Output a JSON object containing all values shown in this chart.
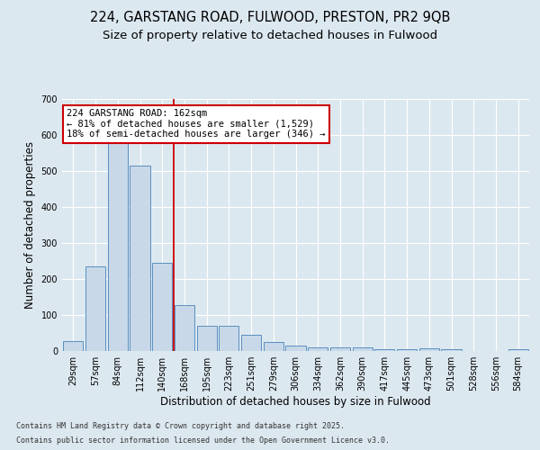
{
  "title_line1": "224, GARSTANG ROAD, FULWOOD, PRESTON, PR2 9QB",
  "title_line2": "Size of property relative to detached houses in Fulwood",
  "xlabel": "Distribution of detached houses by size in Fulwood",
  "ylabel": "Number of detached properties",
  "categories": [
    "29sqm",
    "57sqm",
    "84sqm",
    "112sqm",
    "140sqm",
    "168sqm",
    "195sqm",
    "223sqm",
    "251sqm",
    "279sqm",
    "306sqm",
    "334sqm",
    "362sqm",
    "390sqm",
    "417sqm",
    "445sqm",
    "473sqm",
    "501sqm",
    "528sqm",
    "556sqm",
    "584sqm"
  ],
  "values": [
    28,
    234,
    580,
    515,
    245,
    127,
    70,
    70,
    46,
    26,
    16,
    11,
    11,
    11,
    5,
    5,
    8,
    5,
    0,
    0,
    5
  ],
  "bar_color": "#c8d8e8",
  "bar_edge_color": "#5a8fc0",
  "vline_bin_index": 4,
  "vline_color": "#cc0000",
  "annotation_text": "224 GARSTANG ROAD: 162sqm\n← 81% of detached houses are smaller (1,529)\n18% of semi-detached houses are larger (346) →",
  "annotation_box_color": "#cc0000",
  "annotation_fontsize": 7.5,
  "ylim": [
    0,
    700
  ],
  "yticks": [
    0,
    100,
    200,
    300,
    400,
    500,
    600,
    700
  ],
  "background_color": "#dce8f0",
  "plot_bg_color": "#dce8f0",
  "grid_color": "#ffffff",
  "footer_line1": "Contains HM Land Registry data © Crown copyright and database right 2025.",
  "footer_line2": "Contains public sector information licensed under the Open Government Licence v3.0.",
  "title_fontsize": 10.5,
  "subtitle_fontsize": 9.5,
  "axis_fontsize": 8.5,
  "tick_fontsize": 7
}
